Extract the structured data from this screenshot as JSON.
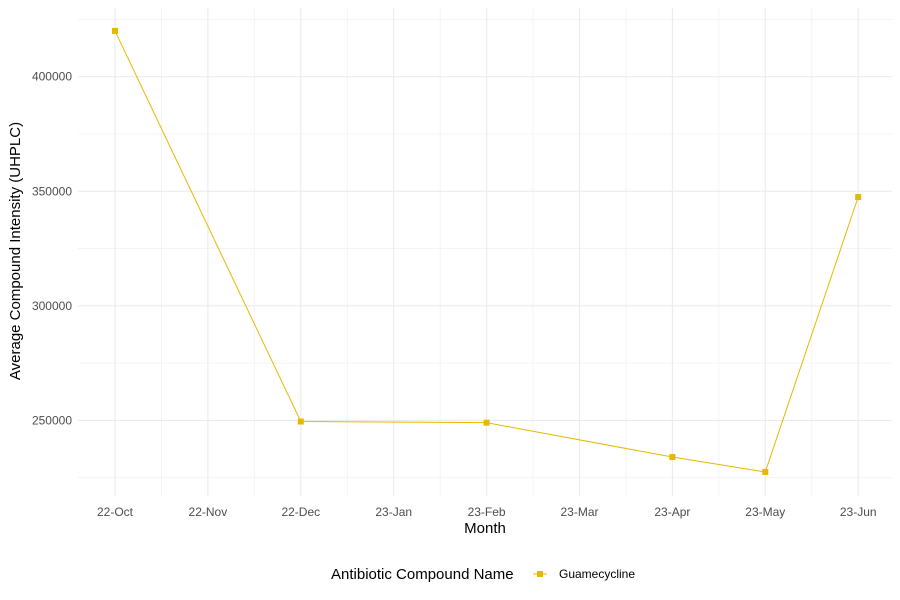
{
  "chart_data": {
    "type": "line",
    "title": "",
    "xlabel": "Month",
    "ylabel": "Average Compound Intensity (UHPLC)",
    "x_ticks": [
      "22-Oct",
      "22-Nov",
      "22-Dec",
      "23-Jan",
      "23-Feb",
      "23-Mar",
      "23-Apr",
      "23-May",
      "23-Jun"
    ],
    "y_ticks": [
      250000,
      300000,
      350000,
      400000
    ],
    "ylim": [
      217000,
      430000
    ],
    "grid": true,
    "legend": {
      "title": "Antibiotic Compound Name",
      "position": "bottom"
    },
    "series": [
      {
        "name": "Guamecycline",
        "color": "#E6B800",
        "marker": "square",
        "points": [
          {
            "x": "22-Oct",
            "y": 420000
          },
          {
            "x": "22-Dec",
            "y": 249500
          },
          {
            "x": "23-Feb",
            "y": 249000
          },
          {
            "x": "23-Apr",
            "y": 234000
          },
          {
            "x": "23-May",
            "y": 227500
          },
          {
            "x": "23-Jun",
            "y": 347500
          }
        ]
      }
    ]
  }
}
